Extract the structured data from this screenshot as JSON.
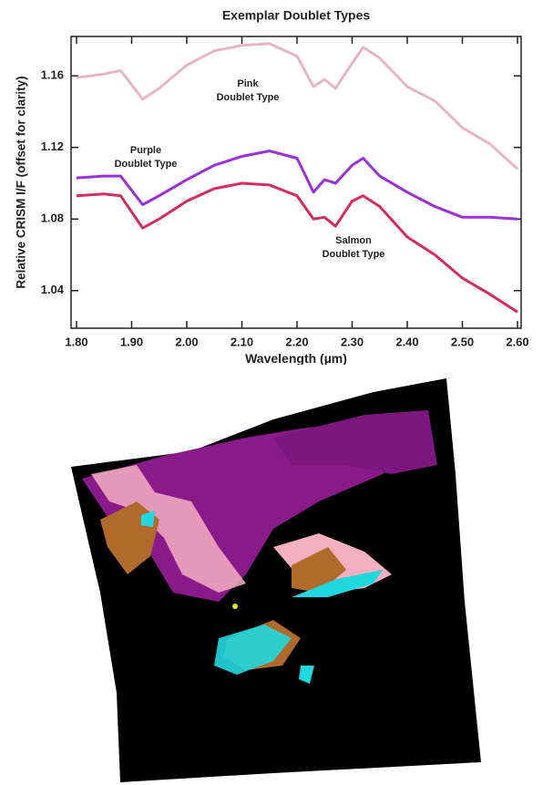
{
  "chart_data": {
    "type": "line",
    "title": "Exemplar Doublet Types",
    "x_label": "Wavelength  (µm)",
    "y_label": "Relative CRISM I/F (offset for clarity)",
    "x": [
      1.8,
      1.85,
      1.88,
      1.92,
      1.95,
      2.0,
      2.05,
      2.1,
      2.15,
      2.2,
      2.23,
      2.25,
      2.27,
      2.3,
      2.32,
      2.35,
      2.4,
      2.45,
      2.5,
      2.55,
      2.6
    ],
    "series": [
      {
        "color": "#e8b4c8",
        "values": [
          1.159,
          1.161,
          1.163,
          1.147,
          1.153,
          1.166,
          1.174,
          1.177,
          1.178,
          1.171,
          1.154,
          1.158,
          1.153,
          1.167,
          1.176,
          1.17,
          1.154,
          1.146,
          1.131,
          1.122,
          1.108
        ]
      },
      {
        "color": "#9b30d9",
        "values": [
          1.103,
          1.104,
          1.104,
          1.088,
          1.093,
          1.102,
          1.11,
          1.115,
          1.118,
          1.114,
          1.095,
          1.102,
          1.1,
          1.11,
          1.114,
          1.104,
          1.095,
          1.087,
          1.081,
          1.081,
          1.08
        ]
      },
      {
        "color": "#d42c5c",
        "values": [
          1.093,
          1.094,
          1.093,
          1.075,
          1.08,
          1.09,
          1.097,
          1.1,
          1.099,
          1.093,
          1.08,
          1.081,
          1.076,
          1.09,
          1.093,
          1.087,
          1.07,
          1.06,
          1.047,
          1.038,
          1.028
        ]
      }
    ],
    "annotations": [
      {
        "lines": [
          "Pink",
          "Doublet Type"
        ]
      },
      {
        "lines": [
          "Purple",
          "Doublet Type"
        ]
      },
      {
        "lines": [
          "Salmon",
          "Doublet Type"
        ]
      }
    ],
    "xlim": [
      1.8,
      2.6
    ],
    "xticks": [
      {
        "value": 1.8,
        "label": "1.80"
      },
      {
        "value": 1.9,
        "label": "1.90"
      },
      {
        "value": 2.0,
        "label": "2.00"
      },
      {
        "value": 2.1,
        "label": "2.10"
      },
      {
        "value": 2.2,
        "label": "2.20"
      },
      {
        "value": 2.3,
        "label": "2.30"
      },
      {
        "value": 2.4,
        "label": "2.40"
      },
      {
        "value": 2.5,
        "label": "2.50"
      },
      {
        "value": 2.6,
        "label": "2.60"
      }
    ],
    "ylim": [
      1.019,
      1.182
    ],
    "yticks": [
      1.04,
      1.08,
      1.12,
      1.16
    ],
    "grid": false
  }
}
